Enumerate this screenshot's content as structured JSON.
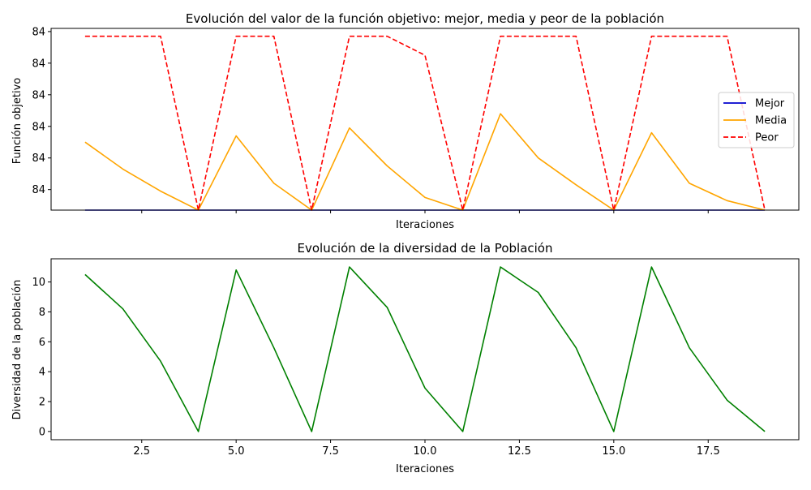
{
  "colors": {
    "mejor": "#0000cd",
    "media": "#ffa500",
    "peor": "#ff0000",
    "diversidad": "#008000"
  },
  "chart_data": [
    {
      "type": "line",
      "title": "Evolución del valor de la función objetivo: mejor, media y peor de la población",
      "xlabel": "Iteraciones",
      "ylabel": "Función objetivo",
      "x": [
        1,
        2,
        3,
        4,
        5,
        6,
        7,
        8,
        9,
        10,
        11,
        12,
        13,
        14,
        15,
        16,
        17,
        18,
        19
      ],
      "xlim": [
        0.1,
        19.9
      ],
      "ylim": [
        0,
        11.5
      ],
      "y_ticks": [
        1.3,
        3.3,
        5.3,
        7.3,
        9.3,
        11.3
      ],
      "y_tick_labels": [
        "84",
        "84",
        "84",
        "84",
        "84",
        "84"
      ],
      "x_ticks": [
        2.5,
        5.0,
        7.5,
        10.0,
        12.5,
        15.0,
        17.5
      ],
      "x_tick_labels": [
        "",
        "",
        "",
        "",
        "",
        "",
        ""
      ],
      "grid": false,
      "legend": "center-right",
      "series": [
        {
          "name": "Mejor",
          "style": "solid",
          "color": "#0000cd",
          "values": [
            0,
            0,
            0,
            0,
            0,
            0,
            0,
            0,
            0,
            0,
            0,
            0,
            0,
            0,
            0,
            0,
            0,
            0,
            0
          ]
        },
        {
          "name": "Media",
          "style": "solid",
          "color": "#ffa500",
          "values": [
            4.3,
            2.6,
            1.2,
            0,
            4.7,
            1.7,
            0,
            5.2,
            2.8,
            0.8,
            0,
            6.1,
            3.3,
            1.6,
            0,
            4.9,
            1.7,
            0.6,
            0
          ]
        },
        {
          "name": "Peor",
          "style": "dashed",
          "color": "#ff0000",
          "values": [
            11.0,
            11.0,
            11.0,
            0,
            11.0,
            11.0,
            0,
            11.0,
            11.0,
            9.8,
            0,
            11.0,
            11.0,
            11.0,
            0,
            11.0,
            11.0,
            11.0,
            0
          ]
        }
      ]
    },
    {
      "type": "line",
      "title": "Evolución de la diversidad de la Población",
      "xlabel": "Iteraciones",
      "ylabel": "Diversidad de la población",
      "x": [
        1,
        2,
        3,
        4,
        5,
        6,
        7,
        8,
        9,
        10,
        11,
        12,
        13,
        14,
        15,
        16,
        17,
        18,
        19
      ],
      "xlim": [
        0.1,
        19.9
      ],
      "ylim": [
        -0.55,
        11.55
      ],
      "y_ticks": [
        0,
        2,
        4,
        6,
        8,
        10
      ],
      "y_tick_labels": [
        "0",
        "2",
        "4",
        "6",
        "8",
        "10"
      ],
      "x_ticks": [
        2.5,
        5.0,
        7.5,
        10.0,
        12.5,
        15.0,
        17.5
      ],
      "x_tick_labels": [
        "2.5",
        "5.0",
        "7.5",
        "10.0",
        "12.5",
        "15.0",
        "17.5"
      ],
      "grid": false,
      "legend": "none",
      "series": [
        {
          "style": "solid",
          "color": "#008000",
          "values": [
            10.5,
            8.2,
            4.7,
            0,
            10.8,
            5.6,
            0,
            11.0,
            8.3,
            2.9,
            0,
            11.0,
            9.3,
            5.6,
            0,
            11.0,
            5.6,
            2.1,
            0
          ]
        }
      ]
    }
  ]
}
